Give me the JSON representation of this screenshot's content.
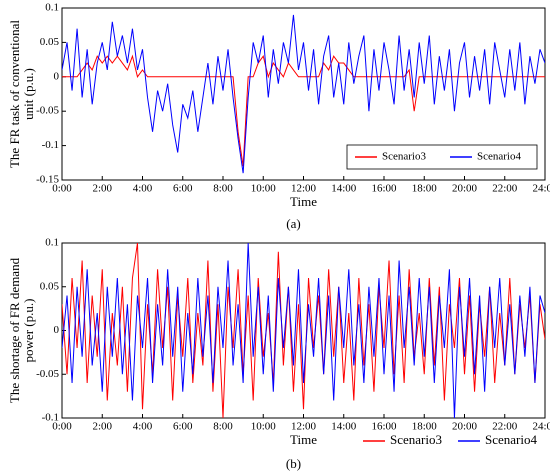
{
  "chart_data": [
    {
      "type": "line",
      "caption": "(a)",
      "xlabel": "Time",
      "ylabel": [
        "The FR task of conventional",
        "unit (p.u.)"
      ],
      "x": [
        0,
        0.25,
        0.5,
        0.75,
        1,
        1.25,
        1.5,
        1.75,
        2,
        2.25,
        2.5,
        2.75,
        3,
        3.25,
        3.5,
        3.75,
        4,
        4.25,
        4.5,
        4.75,
        5,
        5.25,
        5.5,
        5.75,
        6,
        6.25,
        6.5,
        6.75,
        7,
        7.25,
        7.5,
        7.75,
        8,
        8.25,
        8.5,
        8.75,
        9,
        9.25,
        9.5,
        9.75,
        10,
        10.25,
        10.5,
        10.75,
        11,
        11.25,
        11.5,
        11.75,
        12,
        12.25,
        12.5,
        12.75,
        13,
        13.25,
        13.5,
        13.75,
        14,
        14.25,
        14.5,
        14.75,
        15,
        15.25,
        15.5,
        15.75,
        16,
        16.25,
        16.5,
        16.75,
        17,
        17.25,
        17.5,
        17.75,
        18,
        18.25,
        18.5,
        18.75,
        19,
        19.25,
        19.5,
        19.75,
        20,
        20.25,
        20.5,
        20.75,
        21,
        21.25,
        21.5,
        21.75,
        22,
        22.25,
        22.5,
        22.75,
        23,
        23.25,
        23.5,
        23.75,
        24
      ],
      "series": [
        {
          "name": "Scenario3",
          "color": "#ff0000",
          "values": [
            0,
            0,
            0,
            0,
            0.01,
            0.02,
            0.01,
            0.03,
            0.02,
            0.03,
            0.02,
            0.03,
            0.02,
            0.01,
            0.03,
            0,
            0.01,
            0,
            0,
            0,
            0,
            0,
            0,
            0,
            0,
            0,
            0,
            0,
            0,
            0,
            0,
            0,
            0,
            0,
            0,
            -0.08,
            -0.13,
            0,
            0,
            0.02,
            0.03,
            0,
            0.02,
            0.01,
            0,
            0.02,
            0.01,
            0,
            0,
            0,
            0,
            0,
            0.02,
            0.01,
            0.03,
            0.02,
            0.02,
            0.01,
            0,
            0,
            0,
            0,
            0,
            0,
            0,
            0,
            0,
            0,
            0,
            0.01,
            -0.05,
            0,
            0,
            0,
            0,
            0,
            0,
            0,
            0,
            0,
            0,
            0,
            0,
            0,
            0,
            0,
            0,
            0,
            0,
            0,
            0,
            0,
            0,
            0,
            0,
            0,
            0
          ]
        },
        {
          "name": "Scenario4",
          "color": "#0000ff",
          "values": [
            0.01,
            0.05,
            -0.02,
            0.07,
            -0.03,
            0.04,
            -0.04,
            0.02,
            0.05,
            0.01,
            0.08,
            0.03,
            0.06,
            0.02,
            0.07,
            0.01,
            0.04,
            -0.03,
            -0.08,
            -0.02,
            -0.05,
            -0.01,
            -0.07,
            -0.11,
            -0.04,
            -0.06,
            -0.02,
            -0.08,
            -0.03,
            0.02,
            -0.04,
            0.03,
            -0.02,
            0.04,
            -0.03,
            -0.09,
            -0.14,
            -0.03,
            0.05,
            0.02,
            0.06,
            -0.03,
            0.04,
            -0.01,
            0.05,
            0.02,
            0.09,
            0.01,
            0.05,
            -0.02,
            0.04,
            -0.04,
            0.03,
            0.06,
            -0.03,
            0.02,
            -0.04,
            0.05,
            -0.01,
            0.03,
            0.06,
            -0.05,
            0.04,
            -0.02,
            0.05,
            0.01,
            -0.04,
            0.06,
            -0.02,
            0.04,
            -0.03,
            0.05,
            -0.01,
            0.06,
            -0.04,
            0.03,
            -0.02,
            0.04,
            -0.05,
            0.02,
            0.05,
            -0.03,
            0.03,
            -0.02,
            0.04,
            -0.04,
            0.05,
            0.01,
            -0.03,
            0.04,
            -0.02,
            0.05,
            -0.04,
            0.03,
            -0.01,
            0.04,
            0.02
          ]
        }
      ],
      "xlim": [
        0,
        24
      ],
      "xticks": [
        {
          "value": 0,
          "label": "0:00"
        },
        {
          "value": 2,
          "label": "2:00"
        },
        {
          "value": 4,
          "label": "4:00"
        },
        {
          "value": 6,
          "label": "6:00"
        },
        {
          "value": 8,
          "label": "8:00"
        },
        {
          "value": 10,
          "label": "10:00"
        },
        {
          "value": 12,
          "label": "12:00"
        },
        {
          "value": 14,
          "label": "14:00"
        },
        {
          "value": 16,
          "label": "16:00"
        },
        {
          "value": 18,
          "label": "18:00"
        },
        {
          "value": 20,
          "label": "20:00"
        },
        {
          "value": 22,
          "label": "22:00"
        },
        {
          "value": 24,
          "label": "24:00"
        }
      ],
      "ylim": [
        -0.15,
        0.1
      ],
      "yticks": [
        -0.15,
        -0.1,
        -0.05,
        0,
        0.05,
        0.1
      ],
      "grid": false,
      "legend": "inside lower right"
    },
    {
      "type": "line",
      "caption": "(b)",
      "xlabel": "Time",
      "ylabel": [
        "The shortage of FR demand",
        "power (p.u.)"
      ],
      "x": [
        0,
        0.25,
        0.5,
        0.75,
        1,
        1.25,
        1.5,
        1.75,
        2,
        2.25,
        2.5,
        2.75,
        3,
        3.25,
        3.5,
        3.75,
        4,
        4.25,
        4.5,
        4.75,
        5,
        5.25,
        5.5,
        5.75,
        6,
        6.25,
        6.5,
        6.75,
        7,
        7.25,
        7.5,
        7.75,
        8,
        8.25,
        8.5,
        8.75,
        9,
        9.25,
        9.5,
        9.75,
        10,
        10.25,
        10.5,
        10.75,
        11,
        11.25,
        11.5,
        11.75,
        12,
        12.25,
        12.5,
        12.75,
        13,
        13.25,
        13.5,
        13.75,
        14,
        14.25,
        14.5,
        14.75,
        15,
        15.25,
        15.5,
        15.75,
        16,
        16.25,
        16.5,
        16.75,
        17,
        17.25,
        17.5,
        17.75,
        18,
        18.25,
        18.5,
        18.75,
        19,
        19.25,
        19.5,
        19.75,
        20,
        20.25,
        20.5,
        20.75,
        21,
        21.25,
        21.5,
        21.75,
        22,
        22.25,
        22.5,
        22.75,
        23,
        23.25,
        23.5,
        23.75,
        24
      ],
      "series": [
        {
          "name": "Scenario3",
          "color": "#ff0000",
          "values": [
            0.03,
            -0.05,
            0.06,
            -0.02,
            0.08,
            -0.06,
            0.04,
            -0.03,
            0.07,
            -0.08,
            0.02,
            -0.04,
            0.05,
            -0.07,
            0.06,
            0.1,
            -0.09,
            0.03,
            -0.05,
            0.07,
            -0.02,
            0.05,
            -0.08,
            0.04,
            -0.03,
            0.06,
            -0.06,
            0.02,
            -0.04,
            0.08,
            -0.07,
            0.03,
            -0.1,
            0.05,
            -0.02,
            0.07,
            -0.05,
            0.04,
            -0.08,
            0.06,
            -0.03,
            0.02,
            -0.06,
            0.09,
            -0.04,
            0.05,
            -0.07,
            0.03,
            -0.09,
            0.06,
            -0.02,
            0.04,
            -0.05,
            0.07,
            -0.03,
            0.05,
            -0.06,
            0.02,
            -0.08,
            0.06,
            -0.04,
            0.03,
            -0.07,
            0.05,
            -0.02,
            0.08,
            -0.05,
            0.04,
            -0.06,
            0.07,
            -0.03,
            0.02,
            -0.05,
            0.06,
            -0.04,
            0.05,
            -0.08,
            0.03,
            -0.02,
            0.06,
            -0.05,
            0.04,
            -0.07,
            0.03,
            -0.03,
            0.05,
            -0.06,
            0.02,
            -0.04,
            0.06,
            -0.05,
            0.03,
            -0.02,
            0.04,
            -0.06,
            0.03,
            -0.01
          ]
        },
        {
          "name": "Scenario4",
          "color": "#0000ff",
          "values": [
            -0.02,
            0.04,
            -0.06,
            0.05,
            -0.03,
            0.07,
            -0.04,
            0.02,
            -0.07,
            0.05,
            -0.03,
            0.06,
            -0.05,
            0.03,
            -0.08,
            0.04,
            -0.02,
            0.06,
            -0.06,
            0.03,
            -0.04,
            0.07,
            -0.03,
            0.05,
            -0.07,
            0.02,
            -0.05,
            0.06,
            -0.03,
            0.04,
            -0.06,
            0.05,
            -0.02,
            0.08,
            -0.04,
            0.03,
            -0.06,
            0.1,
            -0.03,
            0.05,
            -0.05,
            0.04,
            -0.07,
            0.06,
            -0.02,
            0.05,
            -0.04,
            0.07,
            -0.06,
            0.03,
            -0.03,
            0.06,
            -0.05,
            0.04,
            -0.08,
            0.05,
            -0.02,
            0.07,
            -0.04,
            0.03,
            -0.06,
            0.05,
            -0.03,
            0.06,
            -0.05,
            0.04,
            -0.07,
            0.08,
            -0.02,
            0.05,
            -0.04,
            0.06,
            -0.03,
            0.05,
            -0.06,
            0.04,
            -0.02,
            0.07,
            -0.1,
            0.05,
            -0.03,
            0.06,
            -0.05,
            0.04,
            -0.07,
            0.05,
            -0.02,
            0.06,
            -0.04,
            0.03,
            -0.05,
            0.04,
            -0.03,
            0.05,
            -0.06,
            0.04,
            0.02
          ]
        }
      ],
      "xlim": [
        0,
        24
      ],
      "xticks": [
        {
          "value": 0,
          "label": "0:00"
        },
        {
          "value": 2,
          "label": "2:00"
        },
        {
          "value": 4,
          "label": "4:00"
        },
        {
          "value": 6,
          "label": "6:00"
        },
        {
          "value": 8,
          "label": "8:00"
        },
        {
          "value": 10,
          "label": "10:00"
        },
        {
          "value": 12,
          "label": "12:00"
        },
        {
          "value": 14,
          "label": "14:00"
        },
        {
          "value": 16,
          "label": "16:00"
        },
        {
          "value": 18,
          "label": "18:00"
        },
        {
          "value": 20,
          "label": "20:00"
        },
        {
          "value": 22,
          "label": "22:00"
        },
        {
          "value": 24,
          "label": "24:00"
        }
      ],
      "ylim": [
        -0.1,
        0.1
      ],
      "yticks": [
        -0.1,
        -0.05,
        0,
        0.05,
        0.1
      ],
      "grid": false,
      "legend": "outside lower right"
    }
  ]
}
